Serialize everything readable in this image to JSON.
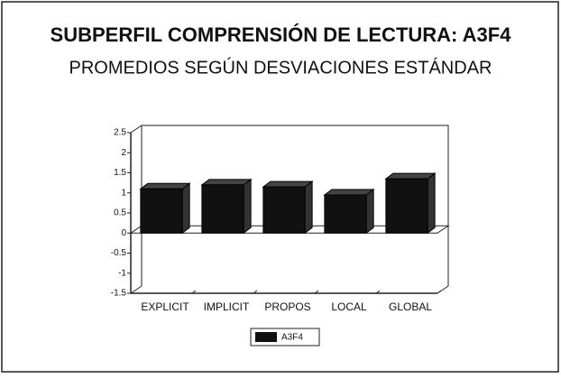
{
  "chart_data": {
    "type": "bar3d",
    "title": "SUBPERFIL COMPRENSIÓN DE LECTURA: A3F4",
    "subtitle": "PROMEDIOS SEGÚN DESVIACIONES ESTÁNDAR",
    "categories": [
      "EXPLICIT",
      "IMPLICIT",
      "PROPOS",
      "LOCAL",
      "GLOBAL"
    ],
    "series": [
      {
        "name": "A3F4",
        "color": "#111111",
        "values": [
          1.1,
          1.2,
          1.15,
          0.95,
          1.35
        ]
      }
    ],
    "ylim": [
      -1.5,
      2.5
    ],
    "yticks": [
      -1.5,
      -1,
      -0.5,
      0,
      0.5,
      1,
      1.5,
      2,
      2.5
    ],
    "grid": false
  }
}
